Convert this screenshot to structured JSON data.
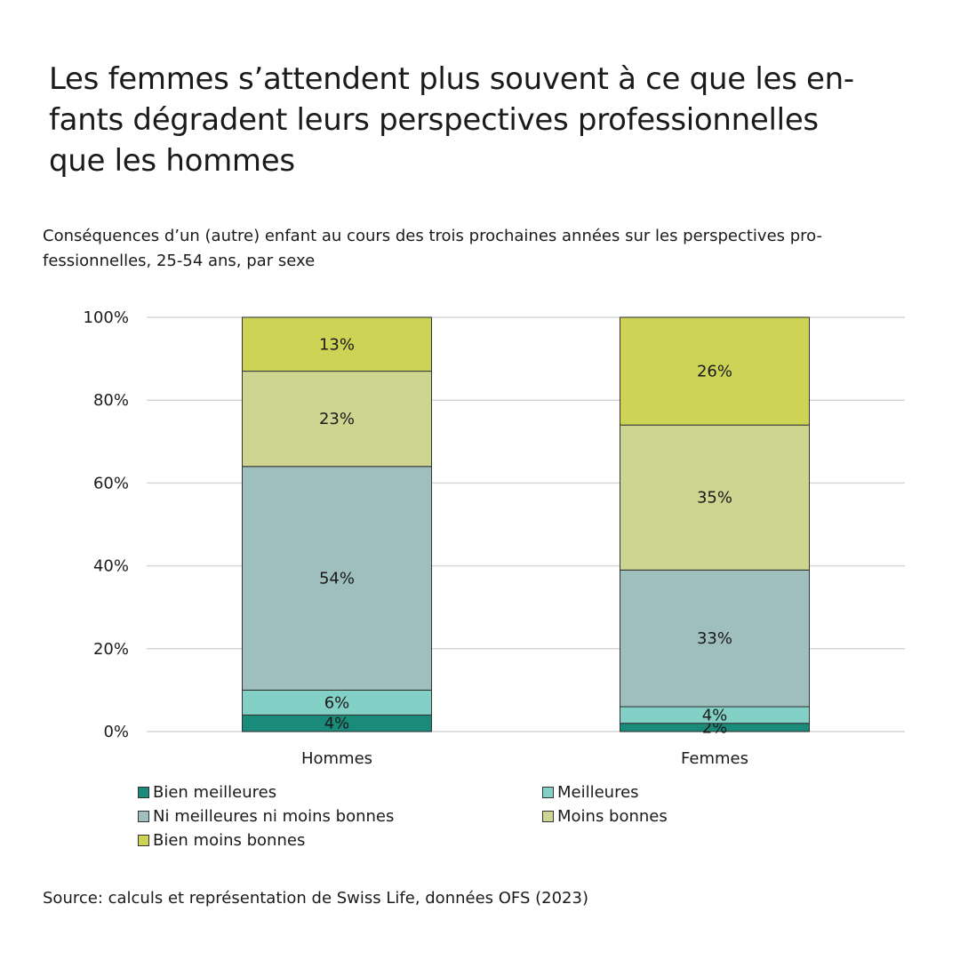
{
  "header": {
    "title_lines": [
      "Les femmes s’attendent plus souvent à ce que les en-",
      "fants dégradent leurs perspectives professionnelles",
      "que les hommes"
    ],
    "subtitle_lines": [
      "Conséquences d’un (autre) enfant au cours des trois prochaines années sur les perspectives pro-",
      "fessionnelles, 25-54 ans, par sexe"
    ]
  },
  "footer": {
    "source": "Source: calculs et représentation de Swiss Life, données OFS (2023)"
  },
  "chart_data": {
    "type": "bar",
    "stacked": true,
    "categories": [
      "Hommes",
      "Femmes"
    ],
    "ylim": [
      0,
      100
    ],
    "yticks": [
      0,
      20,
      40,
      60,
      80,
      100
    ],
    "ytick_labels": [
      "0%",
      "20%",
      "40%",
      "60%",
      "80%",
      "100%"
    ],
    "grid": true,
    "legend_position": "bottom",
    "series": [
      {
        "name": "Bien meilleures",
        "color": "#1a8a7a",
        "values": [
          4,
          2
        ],
        "labels": [
          "4%",
          "2%"
        ]
      },
      {
        "name": "Meilleures",
        "color": "#82d0c6",
        "values": [
          6,
          4
        ],
        "labels": [
          "6%",
          "4%"
        ]
      },
      {
        "name": "Ni meilleures ni moins bonnes",
        "color": "#9ebfbd",
        "values": [
          54,
          33
        ],
        "labels": [
          "54%",
          "33%"
        ]
      },
      {
        "name": "Moins bonnes",
        "color": "#cdd590",
        "values": [
          23,
          35
        ],
        "labels": [
          "23%",
          "35%"
        ]
      },
      {
        "name": "Bien moins bonnes",
        "color": "#ccd355",
        "values": [
          13,
          26
        ],
        "labels": [
          "13%",
          "26%"
        ]
      }
    ]
  }
}
